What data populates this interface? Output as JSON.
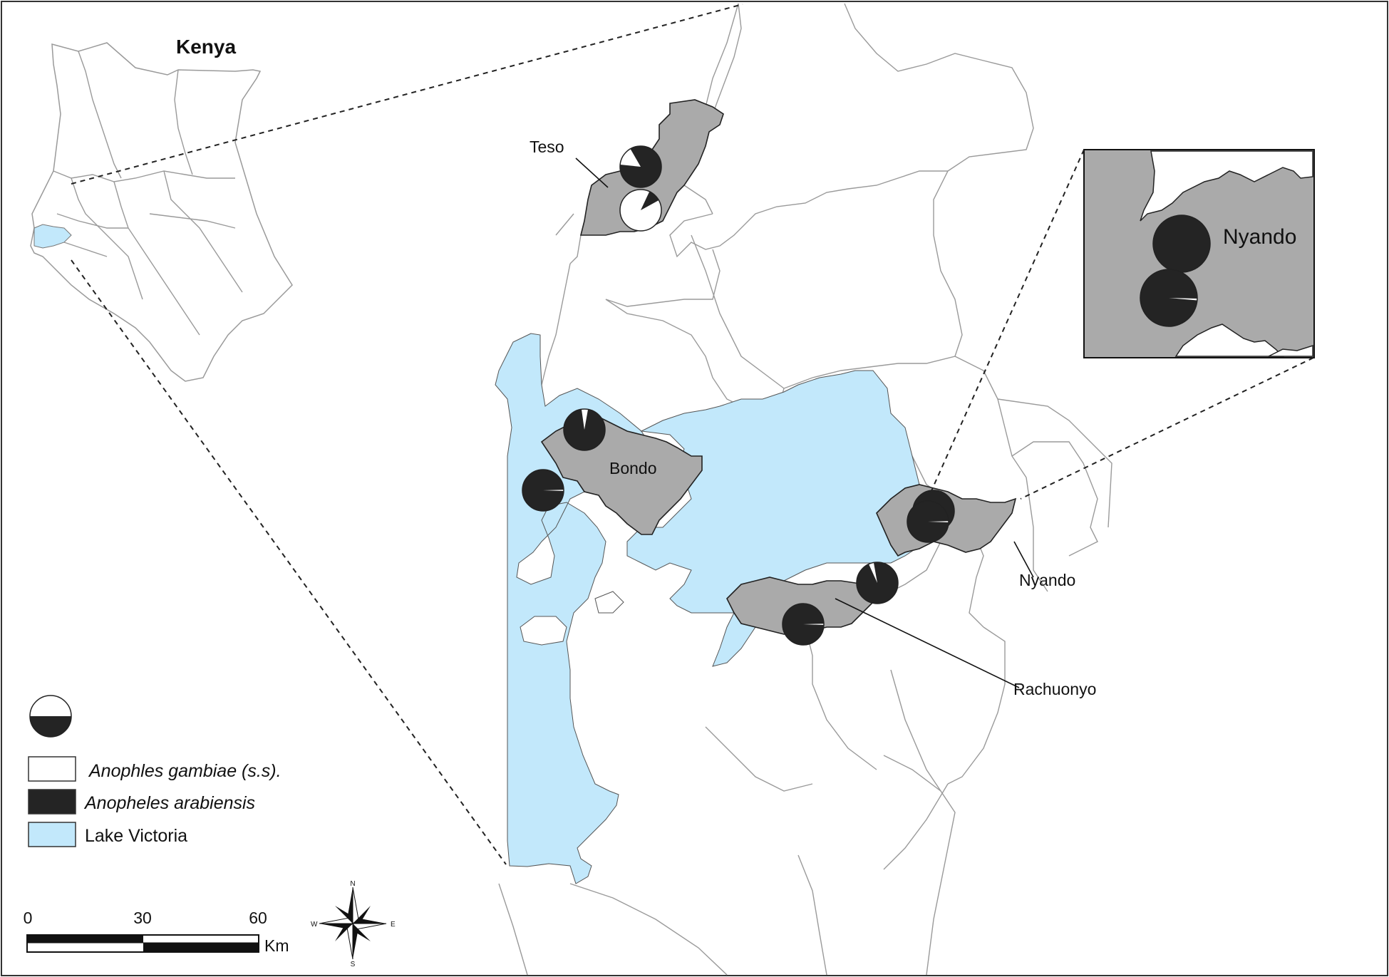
{
  "inset_country": {
    "title": "Kenya"
  },
  "zoom_inset": {
    "label": "Nyando"
  },
  "labels": {
    "teso": "Teso",
    "bondo": "Bondo",
    "nyando": "Nyando",
    "rachuonyo": "Rachuonyo"
  },
  "legend": {
    "items": [
      {
        "label": "Anophles gambiae (s.s).",
        "color": "#ffffff"
      },
      {
        "label": "Anopheles arabiensis",
        "color": "#242424"
      },
      {
        "label": "Lake Victoria",
        "color": "#c2e8fb"
      }
    ]
  },
  "scale_bar": {
    "ticks": [
      "0",
      "30",
      "60"
    ],
    "unit": "Km"
  },
  "compass": {
    "n": "N",
    "s": "S",
    "e": "E",
    "w": "W"
  },
  "pies": [
    {
      "site": "Teso-1",
      "arabiensis_fraction": 0.85
    },
    {
      "site": "Teso-2",
      "arabiensis_fraction": 0.1
    },
    {
      "site": "Bondo-1",
      "arabiensis_fraction": 0.95
    },
    {
      "site": "Bondo-2",
      "arabiensis_fraction": 0.99
    },
    {
      "site": "Nyando-1",
      "arabiensis_fraction": 1.0
    },
    {
      "site": "Nyando-2",
      "arabiensis_fraction": 0.99
    },
    {
      "site": "Rachuonyo-1",
      "arabiensis_fraction": 0.96
    },
    {
      "site": "Rachuonyo-2",
      "arabiensis_fraction": 0.99
    }
  ]
}
